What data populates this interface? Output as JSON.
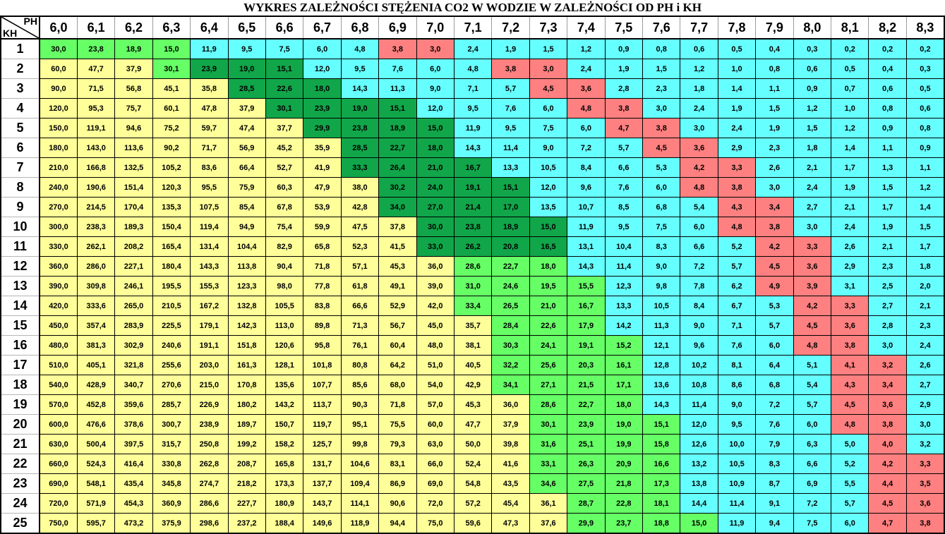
{
  "title": "WYKRES ZALEŻNOŚCI STĘŻENIA CO2 W WODZIE W ZALEŻNOŚCI OD PH i KH",
  "corner": {
    "ph": "PH",
    "kh": "KH"
  },
  "palette": {
    "Y": "#FFFF99",
    "G": "#66FF66",
    "D": "#11A64A",
    "C": "#66FFFF",
    "R": "#FF8080"
  },
  "chart_data": {
    "type": "heatmap",
    "x_axis_label": "PH",
    "y_axis_label": "KH",
    "columns": [
      "6,0",
      "6,1",
      "6,2",
      "6,3",
      "6,4",
      "6,5",
      "6,6",
      "6,7",
      "6,8",
      "6,9",
      "7,0",
      "7,1",
      "7,2",
      "7,3",
      "7,4",
      "7,5",
      "7,6",
      "7,7",
      "7,8",
      "7,9",
      "8,0",
      "8,1",
      "8,2",
      "8,3"
    ],
    "rows": [
      {
        "kh": "1",
        "values": [
          "30,0",
          "23,8",
          "18,9",
          "15,0",
          "11,9",
          "9,5",
          "7,5",
          "6,0",
          "4,8",
          "3,8",
          "3,0",
          "2,4",
          "1,9",
          "1,5",
          "1,2",
          "0,9",
          "0,8",
          "0,6",
          "0,5",
          "0,4",
          "0,3",
          "0,2",
          "0,2",
          "0,2"
        ],
        "colors": "GGGGCCCCCRRCCCCCCCCCCCCC"
      },
      {
        "kh": "2",
        "values": [
          "60,0",
          "47,7",
          "37,9",
          "30,1",
          "23,9",
          "19,0",
          "15,1",
          "12,0",
          "9,5",
          "7,6",
          "6,0",
          "4,8",
          "3,8",
          "3,0",
          "2,4",
          "1,9",
          "1,5",
          "1,2",
          "1,0",
          "0,8",
          "0,6",
          "0,5",
          "0,4",
          "0,3"
        ],
        "colors": "YYYGDDDCCCCCRRCCCCCCCCCC"
      },
      {
        "kh": "3",
        "values": [
          "90,0",
          "71,5",
          "56,8",
          "45,1",
          "35,8",
          "28,5",
          "22,6",
          "18,0",
          "14,3",
          "11,3",
          "9,0",
          "7,1",
          "5,7",
          "4,5",
          "3,6",
          "2,8",
          "2,3",
          "1,8",
          "1,4",
          "1,1",
          "0,9",
          "0,7",
          "0,6",
          "0,5"
        ],
        "colors": "YYYYYDDDCCCCCRRCCCCCCCCC"
      },
      {
        "kh": "4",
        "values": [
          "120,0",
          "95,3",
          "75,7",
          "60,1",
          "47,8",
          "37,9",
          "30,1",
          "23,9",
          "19,0",
          "15,1",
          "12,0",
          "9,5",
          "7,6",
          "6,0",
          "4,8",
          "3,8",
          "3,0",
          "2,4",
          "1,9",
          "1,5",
          "1,2",
          "1,0",
          "0,8",
          "0,6"
        ],
        "colors": "YYYYYYDDDDCCCCRRCCCCCCCC"
      },
      {
        "kh": "5",
        "values": [
          "150,0",
          "119,1",
          "94,6",
          "75,2",
          "59,7",
          "47,4",
          "37,7",
          "29,9",
          "23,8",
          "18,9",
          "15,0",
          "11,9",
          "9,5",
          "7,5",
          "6,0",
          "4,7",
          "3,8",
          "3,0",
          "2,4",
          "1,9",
          "1,5",
          "1,2",
          "0,9",
          "0,8"
        ],
        "colors": "YYYYYYYDDDDCCCCRRCCCCCCC"
      },
      {
        "kh": "6",
        "values": [
          "180,0",
          "143,0",
          "113,6",
          "90,2",
          "71,7",
          "56,9",
          "45,2",
          "35,9",
          "28,5",
          "22,7",
          "18,0",
          "14,3",
          "11,4",
          "9,0",
          "7,2",
          "5,7",
          "4,5",
          "3,6",
          "2,9",
          "2,3",
          "1,8",
          "1,4",
          "1,1",
          "0,9"
        ],
        "colors": "YYYYYYYYDDDCCCCCRRCCCCCC"
      },
      {
        "kh": "7",
        "values": [
          "210,0",
          "166,8",
          "132,5",
          "105,2",
          "83,6",
          "66,4",
          "52,7",
          "41,9",
          "33,3",
          "26,4",
          "21,0",
          "16,7",
          "13,3",
          "10,5",
          "8,4",
          "6,6",
          "5,3",
          "4,2",
          "3,3",
          "2,6",
          "2,1",
          "1,7",
          "1,3",
          "1,1"
        ],
        "colors": "YYYYYYYYDDDDCCCCCRRCCCCC"
      },
      {
        "kh": "8",
        "values": [
          "240,0",
          "190,6",
          "151,4",
          "120,3",
          "95,5",
          "75,9",
          "60,3",
          "47,9",
          "38,0",
          "30,2",
          "24,0",
          "19,1",
          "15,1",
          "12,0",
          "9,6",
          "7,6",
          "6,0",
          "4,8",
          "3,8",
          "3,0",
          "2,4",
          "1,9",
          "1,5",
          "1,2"
        ],
        "colors": "YYYYYYYYYDDDDCCCCRRCCCCC"
      },
      {
        "kh": "9",
        "values": [
          "270,0",
          "214,5",
          "170,4",
          "135,3",
          "107,5",
          "85,4",
          "67,8",
          "53,9",
          "42,8",
          "34,0",
          "27,0",
          "21,4",
          "17,0",
          "13,5",
          "10,7",
          "8,5",
          "6,8",
          "5,4",
          "4,3",
          "3,4",
          "2,7",
          "2,1",
          "1,7",
          "1,4"
        ],
        "colors": "YYYYYYYYYDDDDCCCCCRRCCCC"
      },
      {
        "kh": "10",
        "values": [
          "300,0",
          "238,3",
          "189,3",
          "150,4",
          "119,4",
          "94,9",
          "75,4",
          "59,9",
          "47,5",
          "37,8",
          "30,0",
          "23,8",
          "18,9",
          "15,0",
          "11,9",
          "9,5",
          "7,5",
          "6,0",
          "4,8",
          "3,8",
          "3,0",
          "2,4",
          "1,9",
          "1,5"
        ],
        "colors": "YYYYYYYYYYDDDDCCCCRRCCCC"
      },
      {
        "kh": "11",
        "values": [
          "330,0",
          "262,1",
          "208,2",
          "165,4",
          "131,4",
          "104,4",
          "82,9",
          "65,8",
          "52,3",
          "41,5",
          "33,0",
          "26,2",
          "20,8",
          "16,5",
          "13,1",
          "10,4",
          "8,3",
          "6,6",
          "5,2",
          "4,2",
          "3,3",
          "2,6",
          "2,1",
          "1,7"
        ],
        "colors": "YYYYYYYYYYDDDDCCCCCRRCCC"
      },
      {
        "kh": "12",
        "values": [
          "360,0",
          "286,0",
          "227,1",
          "180,4",
          "143,3",
          "113,8",
          "90,4",
          "71,8",
          "57,1",
          "45,3",
          "36,0",
          "28,6",
          "22,7",
          "18,0",
          "14,3",
          "11,4",
          "9,0",
          "7,2",
          "5,7",
          "4,5",
          "3,6",
          "2,9",
          "2,3",
          "1,8"
        ],
        "colors": "YYYYYYYYYYYGGGCCCCCRRCCC"
      },
      {
        "kh": "13",
        "values": [
          "390,0",
          "309,8",
          "246,1",
          "195,5",
          "155,3",
          "123,3",
          "98,0",
          "77,8",
          "61,8",
          "49,1",
          "39,0",
          "31,0",
          "24,6",
          "19,5",
          "15,5",
          "12,3",
          "9,8",
          "7,8",
          "6,2",
          "4,9",
          "3,9",
          "3,1",
          "2,5",
          "2,0"
        ],
        "colors": "YYYYYYYYYYYGGGGCCCCRRCCC"
      },
      {
        "kh": "14",
        "values": [
          "420,0",
          "333,6",
          "265,0",
          "210,5",
          "167,2",
          "132,8",
          "105,5",
          "83,8",
          "66,6",
          "52,9",
          "42,0",
          "33,4",
          "26,5",
          "21,0",
          "16,7",
          "13,3",
          "10,5",
          "8,4",
          "6,7",
          "5,3",
          "4,2",
          "3,3",
          "2,7",
          "2,1"
        ],
        "colors": "YYYYYYYYYYYGGGGCCCCCRRCC"
      },
      {
        "kh": "15",
        "values": [
          "450,0",
          "357,4",
          "283,9",
          "225,5",
          "179,1",
          "142,3",
          "113,0",
          "89,8",
          "71,3",
          "56,7",
          "45,0",
          "35,7",
          "28,4",
          "22,6",
          "17,9",
          "14,2",
          "11,3",
          "9,0",
          "7,1",
          "5,7",
          "4,5",
          "3,6",
          "2,8",
          "2,3"
        ],
        "colors": "YYYYYYYYYYYYGGGCCCCCRRCC"
      },
      {
        "kh": "16",
        "values": [
          "480,0",
          "381,3",
          "302,9",
          "240,6",
          "191,1",
          "151,8",
          "120,6",
          "95,8",
          "76,1",
          "60,4",
          "48,0",
          "38,1",
          "30,3",
          "24,1",
          "19,1",
          "15,2",
          "12,1",
          "9,6",
          "7,6",
          "6,0",
          "4,8",
          "3,8",
          "3,0",
          "2,4"
        ],
        "colors": "YYYYYYYYYYYYGGGGCCCCRRCC"
      },
      {
        "kh": "17",
        "values": [
          "510,0",
          "405,1",
          "321,8",
          "255,6",
          "203,0",
          "161,3",
          "128,1",
          "101,8",
          "80,8",
          "64,2",
          "51,0",
          "40,5",
          "32,2",
          "25,6",
          "20,3",
          "16,1",
          "12,8",
          "10,2",
          "8,1",
          "6,4",
          "5,1",
          "4,1",
          "3,2",
          "2,6"
        ],
        "colors": "YYYYYYYYYYYYGGGGCCCCCRRC"
      },
      {
        "kh": "18",
        "values": [
          "540,0",
          "428,9",
          "340,7",
          "270,6",
          "215,0",
          "170,8",
          "135,6",
          "107,7",
          "85,6",
          "68,0",
          "54,0",
          "42,9",
          "34,1",
          "27,1",
          "21,5",
          "17,1",
          "13,6",
          "10,8",
          "8,6",
          "6,8",
          "5,4",
          "4,3",
          "3,4",
          "2,7"
        ],
        "colors": "YYYYYYYYYYYYGGGGCCCCCRRC"
      },
      {
        "kh": "19",
        "values": [
          "570,0",
          "452,8",
          "359,6",
          "285,7",
          "226,9",
          "180,2",
          "143,2",
          "113,7",
          "90,3",
          "71,8",
          "57,0",
          "45,3",
          "36,0",
          "28,6",
          "22,7",
          "18,0",
          "14,3",
          "11,4",
          "9,0",
          "7,2",
          "5,7",
          "4,5",
          "3,6",
          "2,9"
        ],
        "colors": "YYYYYYYYYYYYYGGGCCCCCRRC"
      },
      {
        "kh": "20",
        "values": [
          "600,0",
          "476,6",
          "378,6",
          "300,7",
          "238,9",
          "189,7",
          "150,7",
          "119,7",
          "95,1",
          "75,5",
          "60,0",
          "47,7",
          "37,9",
          "30,1",
          "23,9",
          "19,0",
          "15,1",
          "12,0",
          "9,5",
          "7,6",
          "6,0",
          "4,8",
          "3,8",
          "3,0"
        ],
        "colors": "YYYYYYYYYYYYYGGGGCCCCRRC"
      },
      {
        "kh": "21",
        "values": [
          "630,0",
          "500,4",
          "397,5",
          "315,7",
          "250,8",
          "199,2",
          "158,2",
          "125,7",
          "99,8",
          "79,3",
          "63,0",
          "50,0",
          "39,8",
          "31,6",
          "25,1",
          "19,9",
          "15,8",
          "12,6",
          "10,0",
          "7,9",
          "6,3",
          "5,0",
          "4,0",
          "3,2"
        ],
        "colors": "YYYYYYYYYYYYYGGGGCCCCCRC"
      },
      {
        "kh": "22",
        "values": [
          "660,0",
          "524,3",
          "416,4",
          "330,8",
          "262,8",
          "208,7",
          "165,8",
          "131,7",
          "104,6",
          "83,1",
          "66,0",
          "52,4",
          "41,6",
          "33,1",
          "26,3",
          "20,9",
          "16,6",
          "13,2",
          "10,5",
          "8,3",
          "6,6",
          "5,2",
          "4,2",
          "3,3"
        ],
        "colors": "YYYYYYYYYYYYYGGGGCCCCCRR"
      },
      {
        "kh": "23",
        "values": [
          "690,0",
          "548,1",
          "435,4",
          "345,8",
          "274,7",
          "218,2",
          "173,3",
          "137,7",
          "109,4",
          "86,9",
          "69,0",
          "54,8",
          "43,5",
          "34,6",
          "27,5",
          "21,8",
          "17,3",
          "13,8",
          "10,9",
          "8,7",
          "6,9",
          "5,5",
          "4,4",
          "3,5"
        ],
        "colors": "YYYYYYYYYYYYYGGGGCCCCCRR"
      },
      {
        "kh": "24",
        "values": [
          "720,0",
          "571,9",
          "454,3",
          "360,9",
          "286,6",
          "227,7",
          "180,9",
          "143,7",
          "114,1",
          "90,6",
          "72,0",
          "57,2",
          "45,4",
          "36,1",
          "28,7",
          "22,8",
          "18,1",
          "14,4",
          "11,4",
          "9,1",
          "7,2",
          "5,7",
          "4,5",
          "3,6"
        ],
        "colors": "YYYYYYYYYYYYYYGGGCCCCCRR"
      },
      {
        "kh": "25",
        "values": [
          "750,0",
          "595,7",
          "473,2",
          "375,9",
          "298,6",
          "237,2",
          "188,4",
          "149,6",
          "118,9",
          "94,4",
          "75,0",
          "59,6",
          "47,3",
          "37,6",
          "29,9",
          "23,7",
          "18,8",
          "15,0",
          "11,9",
          "9,4",
          "7,5",
          "6,0",
          "4,7",
          "3,8"
        ],
        "colors": "YYYYYYYYYYYYYYGGGGCCCCRR"
      }
    ]
  }
}
